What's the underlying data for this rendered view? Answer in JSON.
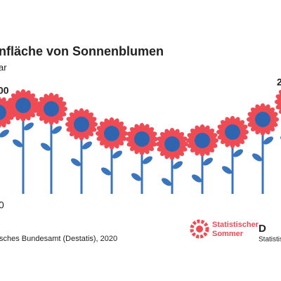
{
  "header": {
    "title": "nfläche von Sonnenblumen",
    "subtitle": "ar"
  },
  "labels": {
    "top_left": "00",
    "bottom_left": "0",
    "top_right": "2"
  },
  "footer": {
    "source": "sches Bundesamt (Destatis), 2020",
    "logo_line1": "Statistischer",
    "logo_line2": "Sommer",
    "logo2_mark": "D",
    "logo2_text": "Statistisc"
  }
}
